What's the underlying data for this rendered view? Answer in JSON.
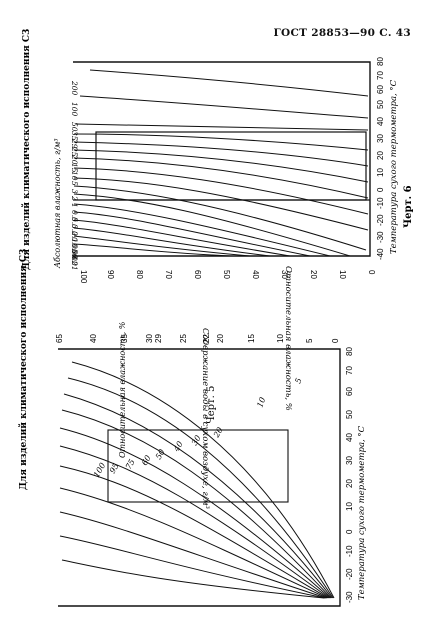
{
  "header": {
    "text": "ГОСТ 28853—90 С. 43"
  },
  "left_figure": {
    "side_title": "Для изделий климатического исполнения С3",
    "caption": "Черт. 5",
    "x_axis_label": "Температура сухого термометра, °С",
    "x_ticks": [
      "-30",
      "-20",
      "-10",
      "0",
      "10",
      "20",
      "30",
      "40",
      "50",
      "60",
      "70",
      "80"
    ],
    "y_axis_label": "Содержание воды в сухом воздухе, г/м³",
    "y_ticks": [
      "65",
      "40",
      "35",
      "30",
      "29",
      "25",
      "22",
      "20",
      "15",
      "10",
      "5",
      "0"
    ],
    "curve_label": "Относительная влажность, %",
    "curve_values": [
      "5",
      "10",
      "20",
      "30",
      "40",
      "50",
      "60",
      "75",
      "95",
      "100"
    ]
  },
  "right_figure": {
    "side_title": "Для изделий климатического исполнения С3",
    "caption": "Черт. 6",
    "x_axis_label": "Температура сухого термометра, °С",
    "x_ticks": [
      "-40",
      "-30",
      "-20",
      "-10",
      "0",
      "10",
      "20",
      "30",
      "40",
      "50",
      "60",
      "70",
      "80"
    ],
    "y_axis_label": "Относительная влажность, %",
    "y_ticks": [
      "100",
      "90",
      "80",
      "70",
      "60",
      "50",
      "40",
      "30",
      "20",
      "10",
      "0"
    ],
    "curve_label": "Абсолютная влажность, г/м³",
    "curve_values": [
      "200",
      "100",
      "50",
      "35",
      "29",
      "25",
      "20",
      "15",
      "10",
      "5",
      "3",
      "2",
      "1",
      "0.5",
      "0.3",
      "0.2",
      "0.1",
      "0.05",
      "0.03",
      "0.02",
      "0.01"
    ]
  }
}
